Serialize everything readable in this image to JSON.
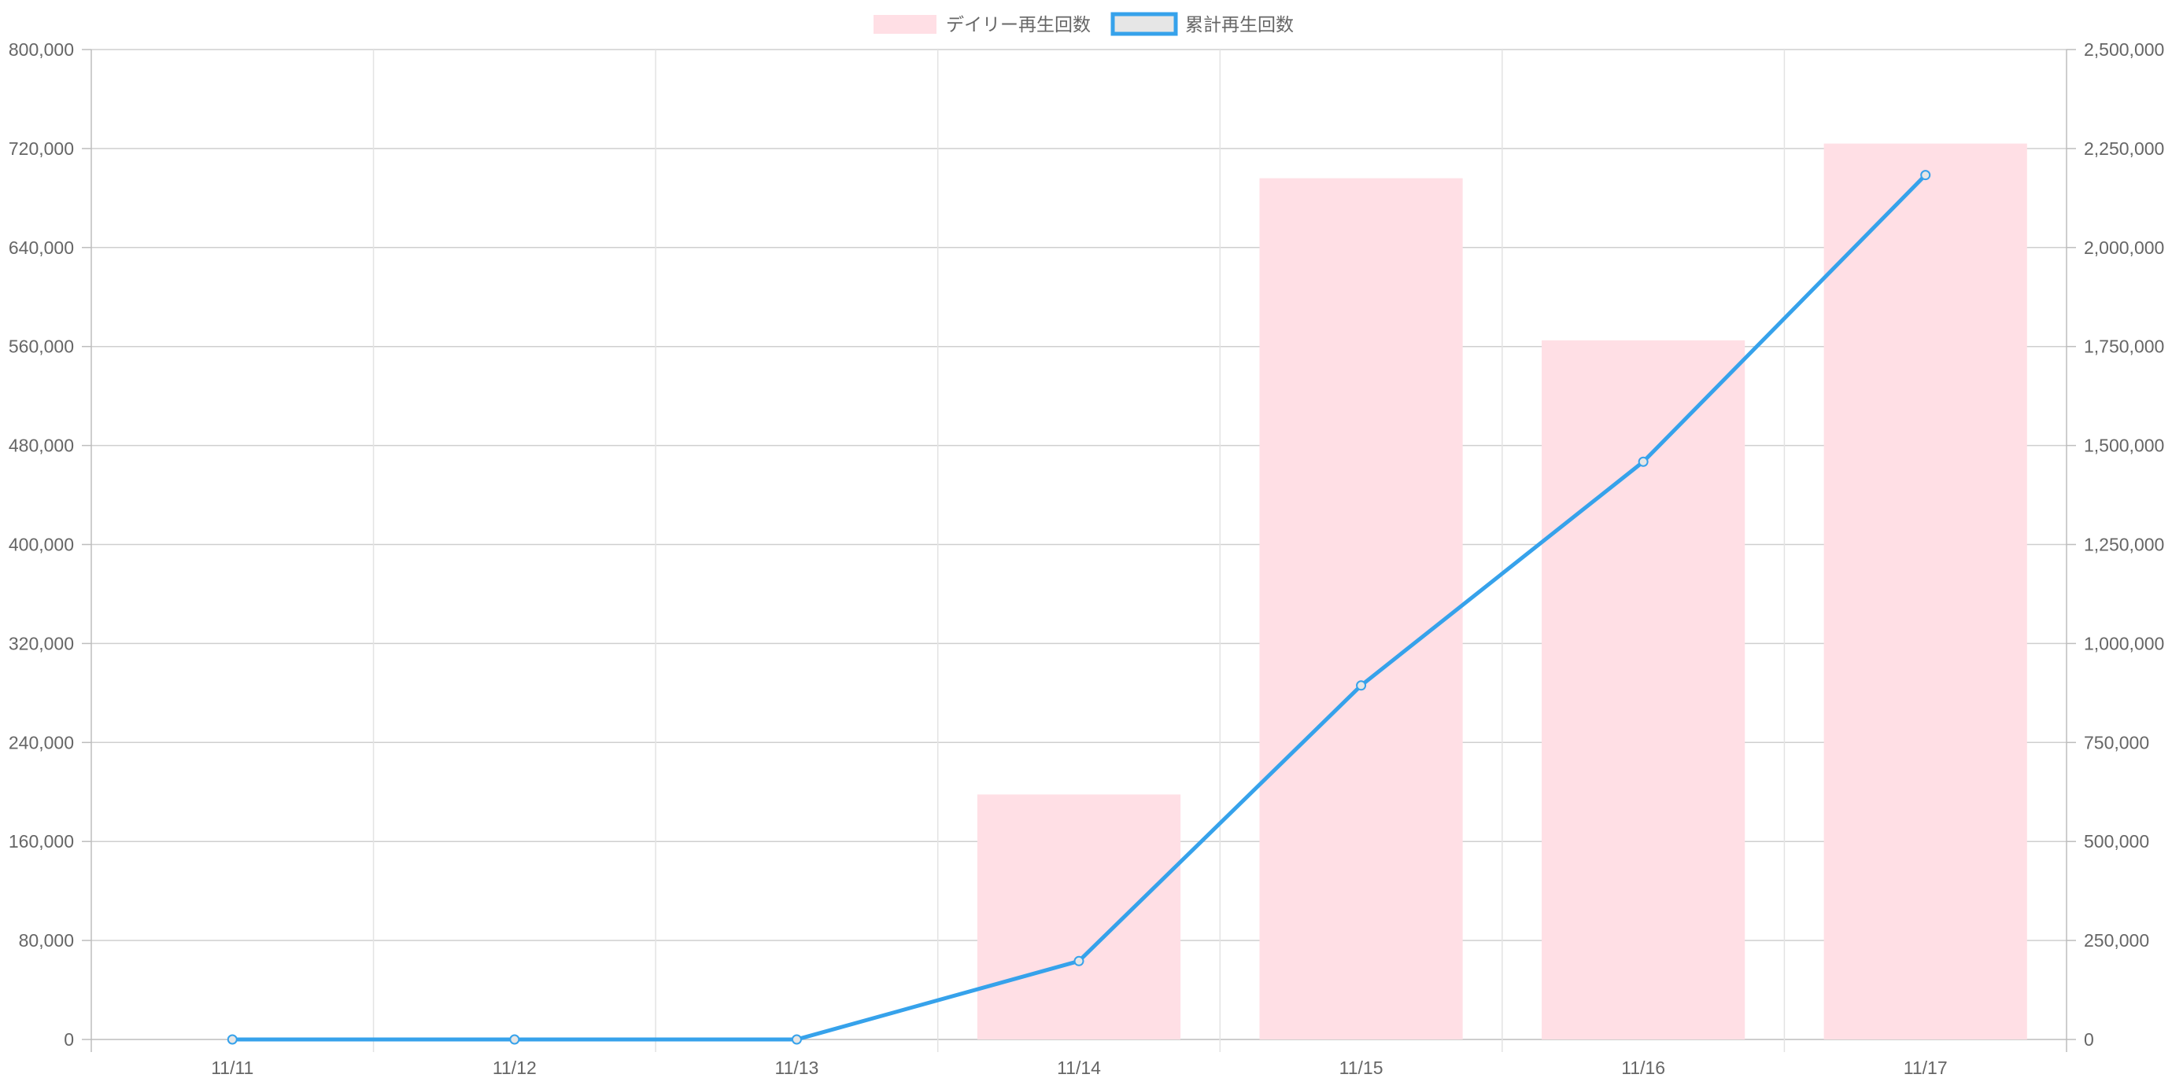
{
  "chart_data": {
    "type": "bar",
    "categories": [
      "11/11",
      "11/12",
      "11/13",
      "11/14",
      "11/15",
      "11/16",
      "11/17"
    ],
    "series": [
      {
        "name": "デイリー再生回数",
        "type": "bar",
        "axis": "left",
        "color": "#ffdfe5",
        "values": [
          0,
          0,
          0,
          198000,
          696000,
          565000,
          724000
        ]
      },
      {
        "name": "累計再生回数",
        "type": "line",
        "axis": "right",
        "color": "#36a2eb",
        "values": [
          0,
          0,
          0,
          198000,
          894000,
          1459000,
          2183000
        ]
      }
    ],
    "y_left": {
      "min": 0,
      "max": 800000,
      "ticks": [
        "0",
        "80,000",
        "160,000",
        "240,000",
        "320,000",
        "400,000",
        "480,000",
        "560,000",
        "640,000",
        "720,000",
        "800,000"
      ]
    },
    "y_right": {
      "min": 0,
      "max": 2500000,
      "ticks": [
        "0",
        "250,000",
        "500,000",
        "750,000",
        "1,000,000",
        "1,250,000",
        "1,500,000",
        "1,750,000",
        "2,000,000",
        "2,250,000",
        "2,500,000"
      ]
    },
    "grid": true,
    "legend_position": "top-center"
  }
}
